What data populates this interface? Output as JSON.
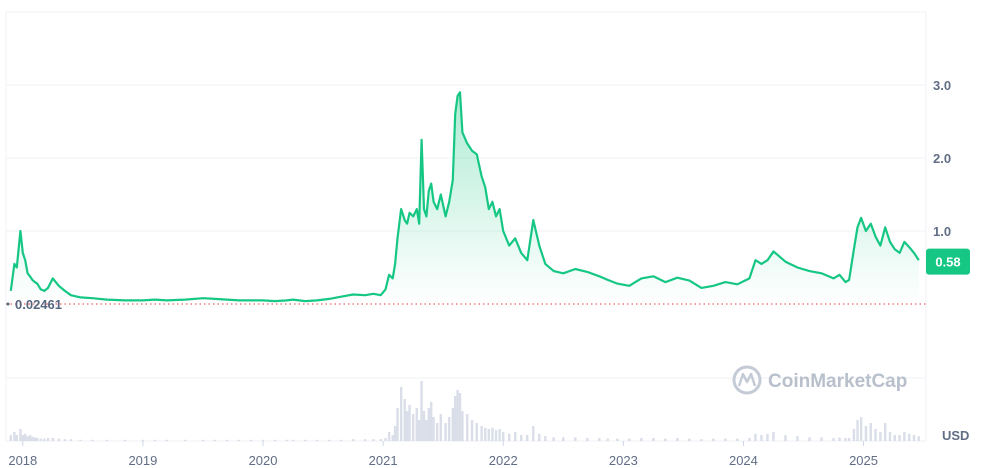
{
  "chart_data": {
    "type": "area",
    "title": "",
    "watermark": "CoinMarketCap",
    "unit": "USD",
    "current_price": "0.58",
    "baseline_value": "0.02461",
    "y_ticks": [
      "1.0",
      "2.0",
      "3.0"
    ],
    "ylim": [
      -0.03,
      4.0
    ],
    "x_ticks": [
      "2018",
      "2019",
      "2020",
      "2021",
      "2022",
      "2023",
      "2024",
      "2025"
    ],
    "xlim": [
      2017.86,
      2025.52
    ],
    "grid": true,
    "colors": {
      "line": "#16c784",
      "area_top": "#16c784",
      "baseline": "#ea3943",
      "badge": "#16c784",
      "grid": "#eff2f5",
      "volume": "#cfd6e4"
    },
    "series": [
      {
        "x": [
          2017.9,
          2017.93,
          2017.95,
          2017.98,
          2018.0,
          2018.02,
          2018.04,
          2018.06,
          2018.08,
          2018.1,
          2018.12,
          2018.15,
          2018.18,
          2018.21,
          2018.25,
          2018.3,
          2018.35,
          2018.4,
          2018.48,
          2018.58,
          2018.7,
          2018.85,
          2019.0,
          2019.1,
          2019.2,
          2019.35,
          2019.5,
          2019.6,
          2019.7,
          2019.8,
          2019.9,
          2020.0,
          2020.1,
          2020.2,
          2020.25,
          2020.35,
          2020.45,
          2020.55,
          2020.65,
          2020.75,
          2020.85,
          2020.92,
          2020.98,
          2021.02,
          2021.05,
          2021.08,
          2021.1,
          2021.12,
          2021.15,
          2021.18,
          2021.2,
          2021.22,
          2021.25,
          2021.28,
          2021.3,
          2021.32,
          2021.34,
          2021.36,
          2021.38,
          2021.4,
          2021.42,
          2021.45,
          2021.48,
          2021.52,
          2021.55,
          2021.58,
          2021.6,
          2021.62,
          2021.64,
          2021.66,
          2021.7,
          2021.74,
          2021.78,
          2021.82,
          2021.85,
          2021.88,
          2021.91,
          2021.94,
          2021.97,
          2022.0,
          2022.05,
          2022.1,
          2022.15,
          2022.2,
          2022.25,
          2022.3,
          2022.35,
          2022.42,
          2022.5,
          2022.6,
          2022.7,
          2022.8,
          2022.87,
          2022.95,
          2023.05,
          2023.15,
          2023.25,
          2023.35,
          2023.45,
          2023.55,
          2023.65,
          2023.75,
          2023.85,
          2023.95,
          2024.05,
          2024.1,
          2024.15,
          2024.2,
          2024.25,
          2024.35,
          2024.45,
          2024.55,
          2024.65,
          2024.75,
          2024.8,
          2024.85,
          2024.88,
          2024.92,
          2024.95,
          2024.98,
          2025.02,
          2025.06,
          2025.1,
          2025.14,
          2025.18,
          2025.22,
          2025.26,
          2025.3,
          2025.34,
          2025.38,
          2025.42,
          2025.46
        ],
        "values": [
          0.18,
          0.55,
          0.5,
          1.0,
          0.7,
          0.6,
          0.42,
          0.38,
          0.33,
          0.3,
          0.28,
          0.2,
          0.18,
          0.22,
          0.35,
          0.25,
          0.18,
          0.12,
          0.09,
          0.08,
          0.06,
          0.05,
          0.05,
          0.06,
          0.05,
          0.06,
          0.08,
          0.07,
          0.06,
          0.05,
          0.05,
          0.05,
          0.04,
          0.05,
          0.06,
          0.04,
          0.05,
          0.07,
          0.1,
          0.13,
          0.12,
          0.14,
          0.12,
          0.2,
          0.4,
          0.35,
          0.55,
          0.9,
          1.3,
          1.15,
          1.1,
          1.25,
          1.2,
          1.3,
          1.1,
          2.25,
          1.3,
          1.2,
          1.55,
          1.65,
          1.4,
          1.3,
          1.5,
          1.2,
          1.4,
          1.7,
          2.6,
          2.85,
          2.9,
          2.35,
          2.2,
          2.1,
          2.05,
          1.75,
          1.6,
          1.3,
          1.4,
          1.2,
          1.3,
          1.0,
          0.8,
          0.9,
          0.7,
          0.6,
          1.15,
          0.8,
          0.55,
          0.45,
          0.42,
          0.48,
          0.44,
          0.38,
          0.33,
          0.28,
          0.25,
          0.35,
          0.38,
          0.3,
          0.36,
          0.32,
          0.22,
          0.25,
          0.3,
          0.27,
          0.35,
          0.6,
          0.55,
          0.6,
          0.72,
          0.58,
          0.5,
          0.45,
          0.42,
          0.35,
          0.4,
          0.3,
          0.33,
          0.75,
          1.05,
          1.18,
          1.0,
          1.1,
          0.92,
          0.8,
          1.05,
          0.85,
          0.75,
          0.7,
          0.85,
          0.78,
          0.7,
          0.6
        ],
        "volume": [
          0.1,
          0.15,
          0.1,
          0.2,
          0.1,
          0.12,
          0.08,
          0.1,
          0.07,
          0.06,
          0.05,
          0.04,
          0.04,
          0.05,
          0.05,
          0.04,
          0.03,
          0.03,
          0.02,
          0.02,
          0.02,
          0.02,
          0.02,
          0.02,
          0.02,
          0.02,
          0.02,
          0.02,
          0.02,
          0.02,
          0.02,
          0.02,
          0.02,
          0.02,
          0.02,
          0.02,
          0.02,
          0.02,
          0.02,
          0.03,
          0.03,
          0.03,
          0.03,
          0.05,
          0.15,
          0.1,
          0.25,
          0.55,
          0.9,
          0.7,
          0.5,
          0.6,
          0.45,
          0.55,
          0.35,
          1.0,
          0.5,
          0.35,
          0.55,
          0.65,
          0.4,
          0.3,
          0.45,
          0.3,
          0.4,
          0.55,
          0.75,
          0.85,
          0.8,
          0.5,
          0.45,
          0.35,
          0.3,
          0.25,
          0.22,
          0.2,
          0.22,
          0.18,
          0.2,
          0.15,
          0.12,
          0.15,
          0.1,
          0.1,
          0.25,
          0.12,
          0.08,
          0.06,
          0.06,
          0.06,
          0.05,
          0.05,
          0.04,
          0.04,
          0.04,
          0.05,
          0.05,
          0.04,
          0.05,
          0.04,
          0.03,
          0.04,
          0.04,
          0.04,
          0.05,
          0.12,
          0.1,
          0.12,
          0.15,
          0.1,
          0.08,
          0.06,
          0.06,
          0.05,
          0.06,
          0.05,
          0.05,
          0.2,
          0.35,
          0.4,
          0.25,
          0.3,
          0.2,
          0.15,
          0.3,
          0.15,
          0.1,
          0.1,
          0.15,
          0.12,
          0.1,
          0.08
        ]
      }
    ]
  }
}
